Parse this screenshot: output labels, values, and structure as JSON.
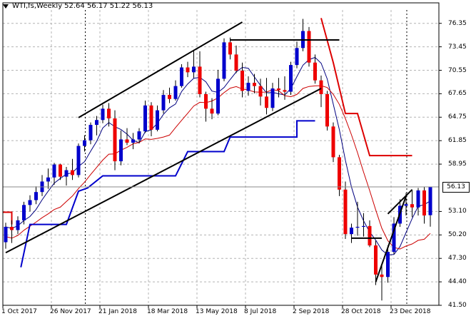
{
  "title": {
    "symbol": "WTI,fs,Weekly",
    "ohlc": "52.64 56.17 51.22 56.13"
  },
  "price_tag": "56.13",
  "colors": {
    "up": "#0000cc",
    "down": "#ee0000",
    "grid": "#b4b4b4",
    "ma_fast": "#000080",
    "ma_slow": "#cc0000",
    "stop_red": "#dd0000",
    "stop_blue": "#0000cc"
  },
  "chart_data": {
    "type": "candlestick",
    "ylim": [
      41.5,
      78.0
    ],
    "yticks": [
      "76.35",
      "73.45",
      "70.55",
      "67.65",
      "64.75",
      "61.85",
      "58.95",
      "56.13",
      "53.10",
      "50.20",
      "47.30",
      "44.40",
      "41.50"
    ],
    "ytick_values": [
      76.35,
      73.45,
      70.55,
      67.65,
      64.75,
      61.85,
      58.95,
      56.13,
      53.1,
      50.2,
      47.3,
      44.4,
      41.5
    ],
    "xticks": [
      "1 Oct 2017",
      "26 Nov 2017",
      "21 Jan 2018",
      "18 Mar 2018",
      "13 May 2018",
      "8 Jul 2018",
      "2 Sep 2018",
      "28 Oct 2018",
      "23 Dec 2018"
    ],
    "xtick_index": [
      0,
      8,
      16,
      24,
      32,
      40,
      48,
      56,
      64
    ],
    "candles": [
      [
        49.3,
        51.7,
        48.5,
        51.2
      ],
      [
        51.2,
        52.0,
        49.2,
        50.8
      ],
      [
        50.8,
        52.5,
        50.3,
        52.0
      ],
      [
        52.0,
        54.3,
        51.5,
        53.9
      ],
      [
        53.9,
        55.1,
        53.1,
        54.5
      ],
      [
        54.5,
        56.2,
        54.0,
        55.5
      ],
      [
        55.5,
        57.6,
        55.0,
        56.8
      ],
      [
        56.8,
        58.4,
        55.9,
        57.3
      ],
      [
        57.3,
        59.1,
        56.4,
        58.9
      ],
      [
        58.9,
        59.0,
        57.0,
        57.4
      ],
      [
        57.4,
        58.6,
        56.3,
        58.2
      ],
      [
        58.2,
        59.6,
        57.0,
        57.6
      ],
      [
        57.6,
        61.5,
        57.3,
        61.2
      ],
      [
        61.2,
        62.5,
        60.5,
        61.9
      ],
      [
        61.9,
        64.1,
        61.4,
        63.8
      ],
      [
        63.8,
        64.9,
        62.5,
        64.4
      ],
      [
        64.4,
        66.3,
        64.0,
        65.8
      ],
      [
        65.8,
        66.5,
        63.6,
        64.6
      ],
      [
        64.6,
        65.6,
        58.2,
        59.3
      ],
      [
        59.3,
        63.1,
        58.8,
        62.0
      ],
      [
        62.0,
        63.4,
        61.3,
        61.6
      ],
      [
        61.6,
        62.8,
        60.8,
        62.0
      ],
      [
        62.0,
        63.4,
        61.5,
        63.0
      ],
      [
        63.0,
        66.8,
        62.8,
        66.2
      ],
      [
        66.2,
        66.6,
        62.4,
        63.2
      ],
      [
        63.2,
        66.2,
        63.0,
        65.6
      ],
      [
        65.6,
        68.1,
        65.2,
        67.5
      ],
      [
        67.5,
        68.4,
        66.5,
        67.0
      ],
      [
        67.0,
        69.3,
        66.8,
        68.6
      ],
      [
        68.6,
        71.3,
        68.4,
        70.9
      ],
      [
        70.9,
        71.6,
        69.7,
        70.3
      ],
      [
        70.3,
        73.1,
        69.6,
        71.0
      ],
      [
        71.0,
        72.9,
        67.2,
        67.6
      ],
      [
        67.6,
        67.9,
        64.2,
        65.8
      ],
      [
        65.8,
        67.1,
        64.5,
        65.2
      ],
      [
        65.2,
        70.6,
        65.0,
        69.5
      ],
      [
        69.5,
        74.5,
        69.2,
        74.0
      ],
      [
        74.0,
        74.6,
        71.9,
        72.5
      ],
      [
        72.5,
        73.6,
        70.2,
        70.5
      ],
      [
        70.5,
        71.5,
        67.2,
        68.0
      ],
      [
        68.0,
        69.8,
        67.4,
        69.0
      ],
      [
        69.0,
        70.1,
        67.7,
        68.6
      ],
      [
        68.6,
        69.5,
        66.2,
        67.3
      ],
      [
        67.3,
        69.6,
        65.1,
        65.9
      ],
      [
        65.9,
        69.0,
        65.5,
        68.3
      ],
      [
        68.3,
        69.6,
        67.2,
        68.1
      ],
      [
        68.1,
        69.8,
        66.9,
        67.9
      ],
      [
        67.9,
        71.6,
        67.5,
        71.2
      ],
      [
        71.2,
        74.1,
        70.8,
        73.3
      ],
      [
        73.3,
        76.9,
        72.9,
        75.4
      ],
      [
        75.4,
        75.9,
        71.0,
        71.5
      ],
      [
        71.5,
        72.5,
        68.9,
        69.3
      ],
      [
        69.3,
        69.9,
        66.0,
        67.6
      ],
      [
        67.6,
        68.0,
        63.1,
        63.6
      ],
      [
        63.6,
        64.1,
        59.2,
        59.8
      ],
      [
        59.8,
        60.1,
        55.0,
        55.8
      ],
      [
        55.8,
        56.8,
        49.7,
        50.3
      ],
      [
        50.3,
        51.6,
        49.2,
        51.1
      ],
      [
        51.1,
        54.3,
        50.1,
        51.2
      ],
      [
        51.2,
        52.9,
        50.0,
        51.3
      ],
      [
        51.3,
        52.0,
        48.7,
        48.9
      ],
      [
        48.9,
        49.5,
        44.0,
        45.3
      ],
      [
        45.3,
        46.5,
        42.1,
        45.0
      ],
      [
        45.0,
        48.9,
        44.3,
        48.1
      ],
      [
        48.1,
        52.4,
        47.8,
        51.6
      ],
      [
        51.6,
        54.6,
        51.2,
        53.8
      ],
      [
        53.8,
        55.4,
        52.6,
        54.0
      ],
      [
        54.0,
        55.8,
        52.4,
        53.6
      ],
      [
        53.6,
        56.0,
        52.6,
        55.7
      ],
      [
        55.7,
        56.1,
        51.6,
        52.6
      ],
      [
        52.64,
        56.17,
        51.22,
        56.13
      ]
    ],
    "current_price": 56.13
  }
}
